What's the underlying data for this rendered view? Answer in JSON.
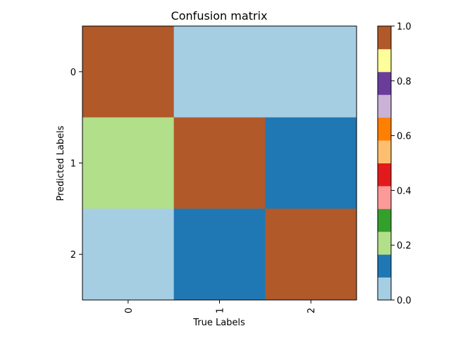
{
  "chart_data": {
    "type": "heatmap",
    "title": "Confusion matrix",
    "xlabel": "True Labels",
    "ylabel": "Predicted Labels",
    "x_tick_labels": [
      "0",
      "1",
      "2"
    ],
    "y_tick_labels": [
      "0",
      "1",
      "2"
    ],
    "matrix": [
      [
        1.0,
        0.0,
        0.0
      ],
      [
        0.2,
        1.0,
        0.1
      ],
      [
        0.0,
        0.1,
        1.0
      ]
    ],
    "colorbar": {
      "range": [
        0.0,
        1.0
      ],
      "tick_values": [
        0.0,
        0.2,
        0.4,
        0.6,
        0.8,
        1.0
      ],
      "tick_labels": [
        "0.0",
        "0.2",
        "0.4",
        "0.6",
        "0.8",
        "1.0"
      ],
      "colormap": "Paired",
      "colors": [
        "#a6cee3",
        "#1f78b4",
        "#b2df8a",
        "#33a02c",
        "#fb9a99",
        "#e31a1c",
        "#fdbf6f",
        "#ff7f00",
        "#cab2d6",
        "#6a3d9a",
        "#ffff99",
        "#b15928"
      ]
    }
  }
}
